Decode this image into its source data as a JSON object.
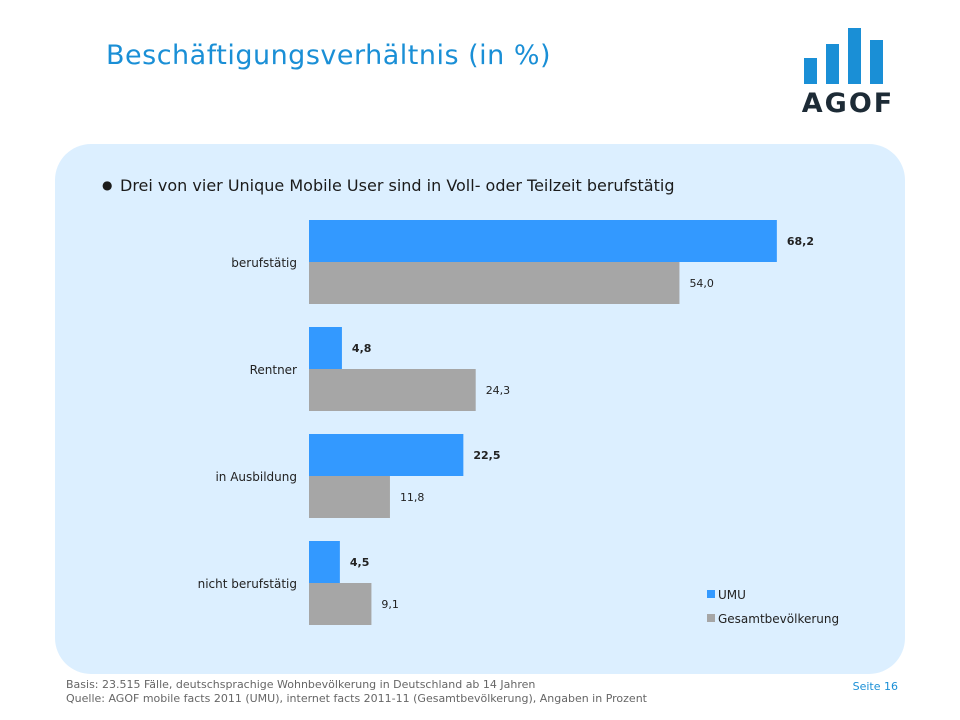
{
  "header": {
    "title": "Beschäftigungsverhältnis (in %)",
    "logo_text": "AGOF",
    "accent_color": "#1a8fd6"
  },
  "bullet": "Drei von vier Unique Mobile User sind in Voll- oder Teilzeit berufstätig",
  "chart_data": {
    "type": "bar",
    "orientation": "horizontal",
    "categories": [
      "berufstätig",
      "Rentner",
      "in Ausbildung",
      "nicht berufstätig"
    ],
    "series": [
      {
        "name": "UMU",
        "values": [
          68.2,
          4.8,
          22.5,
          4.5
        ],
        "labels": [
          "68,2",
          "4,8",
          "22,5",
          "4,5"
        ],
        "color": "#3399ff",
        "label_bold": true
      },
      {
        "name": "Gesamtbevölkerung",
        "values": [
          54.0,
          24.3,
          11.8,
          9.1
        ],
        "labels": [
          "54,0",
          "24,3",
          "11,8",
          "9,1"
        ],
        "color": "#a6a6a6",
        "label_bold": false
      }
    ],
    "xlim": [
      0,
      75
    ],
    "legend_position": "bottom-right",
    "grid": false
  },
  "footer": {
    "basis": "Basis: 23.515 Fälle, deutschsprachige Wohnbevölkerung in Deutschland ab 14 Jahren",
    "quelle": "Quelle: AGOF mobile facts 2011 (UMU), internet facts 2011-11 (Gesamtbevölkerung), Angaben in Prozent",
    "page": "Seite 16"
  }
}
